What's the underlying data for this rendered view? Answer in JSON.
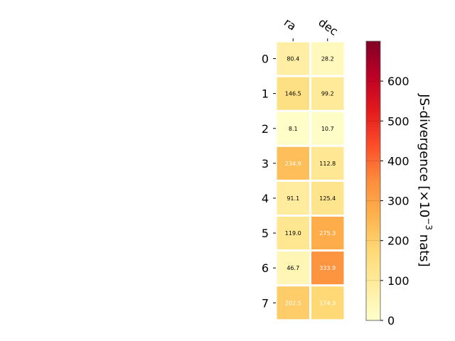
{
  "chart_data": {
    "type": "heatmap",
    "columns": [
      "ra",
      "dec"
    ],
    "rows": [
      "0",
      "1",
      "2",
      "3",
      "4",
      "5",
      "6",
      "7"
    ],
    "values": [
      [
        80.4,
        28.2
      ],
      [
        146.5,
        99.2
      ],
      [
        8.1,
        10.7
      ],
      [
        234.9,
        112.8
      ],
      [
        91.1,
        125.4
      ],
      [
        119.0,
        275.3
      ],
      [
        46.7,
        333.9
      ],
      [
        202.5,
        174.3
      ]
    ],
    "value_labels": [
      [
        "80.4",
        "28.2"
      ],
      [
        "146.5",
        "99.2"
      ],
      [
        "8.1",
        "10.7"
      ],
      [
        "234.9",
        "112.8"
      ],
      [
        "91.1",
        "125.4"
      ],
      [
        "119.0",
        "275.3"
      ],
      [
        "46.7",
        "333.9"
      ],
      [
        "202.5",
        "174.3"
      ]
    ],
    "colormap": "YlOrRd",
    "vmin": 0,
    "vmax": 700,
    "colorbar": {
      "ticks": [
        "0",
        "100",
        "200",
        "300",
        "400",
        "500",
        "600"
      ],
      "tick_values": [
        0,
        100,
        200,
        300,
        400,
        500,
        600
      ],
      "label_main": "JS-divergence [×10",
      "label_exp": "−3",
      "label_tail": " nats]"
    },
    "grid": false
  }
}
